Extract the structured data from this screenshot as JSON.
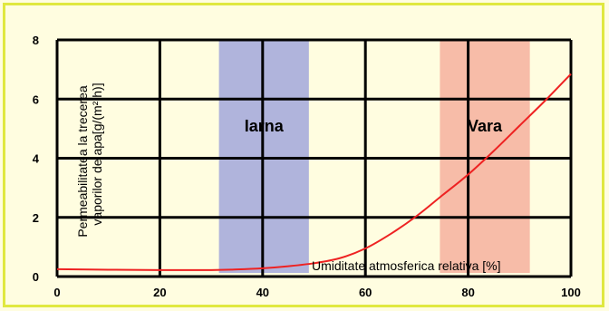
{
  "chart_data": {
    "type": "line",
    "xlabel": "Umiditate atmosferica relativa [%]",
    "ylabel_lines": [
      "Permeabilitatea la trecerea",
      "vaporilor de apa[g/(m² h)]"
    ],
    "xlim": [
      0,
      100
    ],
    "ylim": [
      0,
      8
    ],
    "x_ticks": [
      0,
      20,
      40,
      60,
      80,
      100
    ],
    "y_ticks": [
      0,
      2,
      4,
      6,
      8
    ],
    "grid": true,
    "bands": [
      {
        "label": "Iarna",
        "x_range": [
          31.5,
          49
        ],
        "color": "#b0b4dc"
      },
      {
        "label": "Vara",
        "x_range": [
          74.5,
          92
        ],
        "color": "#f7bca8"
      }
    ],
    "series": [
      {
        "color": "#ee2222",
        "x": [
          0,
          10,
          20,
          30,
          35,
          40,
          45,
          50,
          55,
          60,
          65,
          70,
          75,
          80,
          85,
          90,
          95,
          100
        ],
        "y": [
          0.25,
          0.23,
          0.22,
          0.22,
          0.24,
          0.28,
          0.35,
          0.45,
          0.62,
          0.95,
          1.45,
          2.05,
          2.75,
          3.45,
          4.25,
          5.1,
          5.95,
          6.85
        ]
      }
    ]
  }
}
